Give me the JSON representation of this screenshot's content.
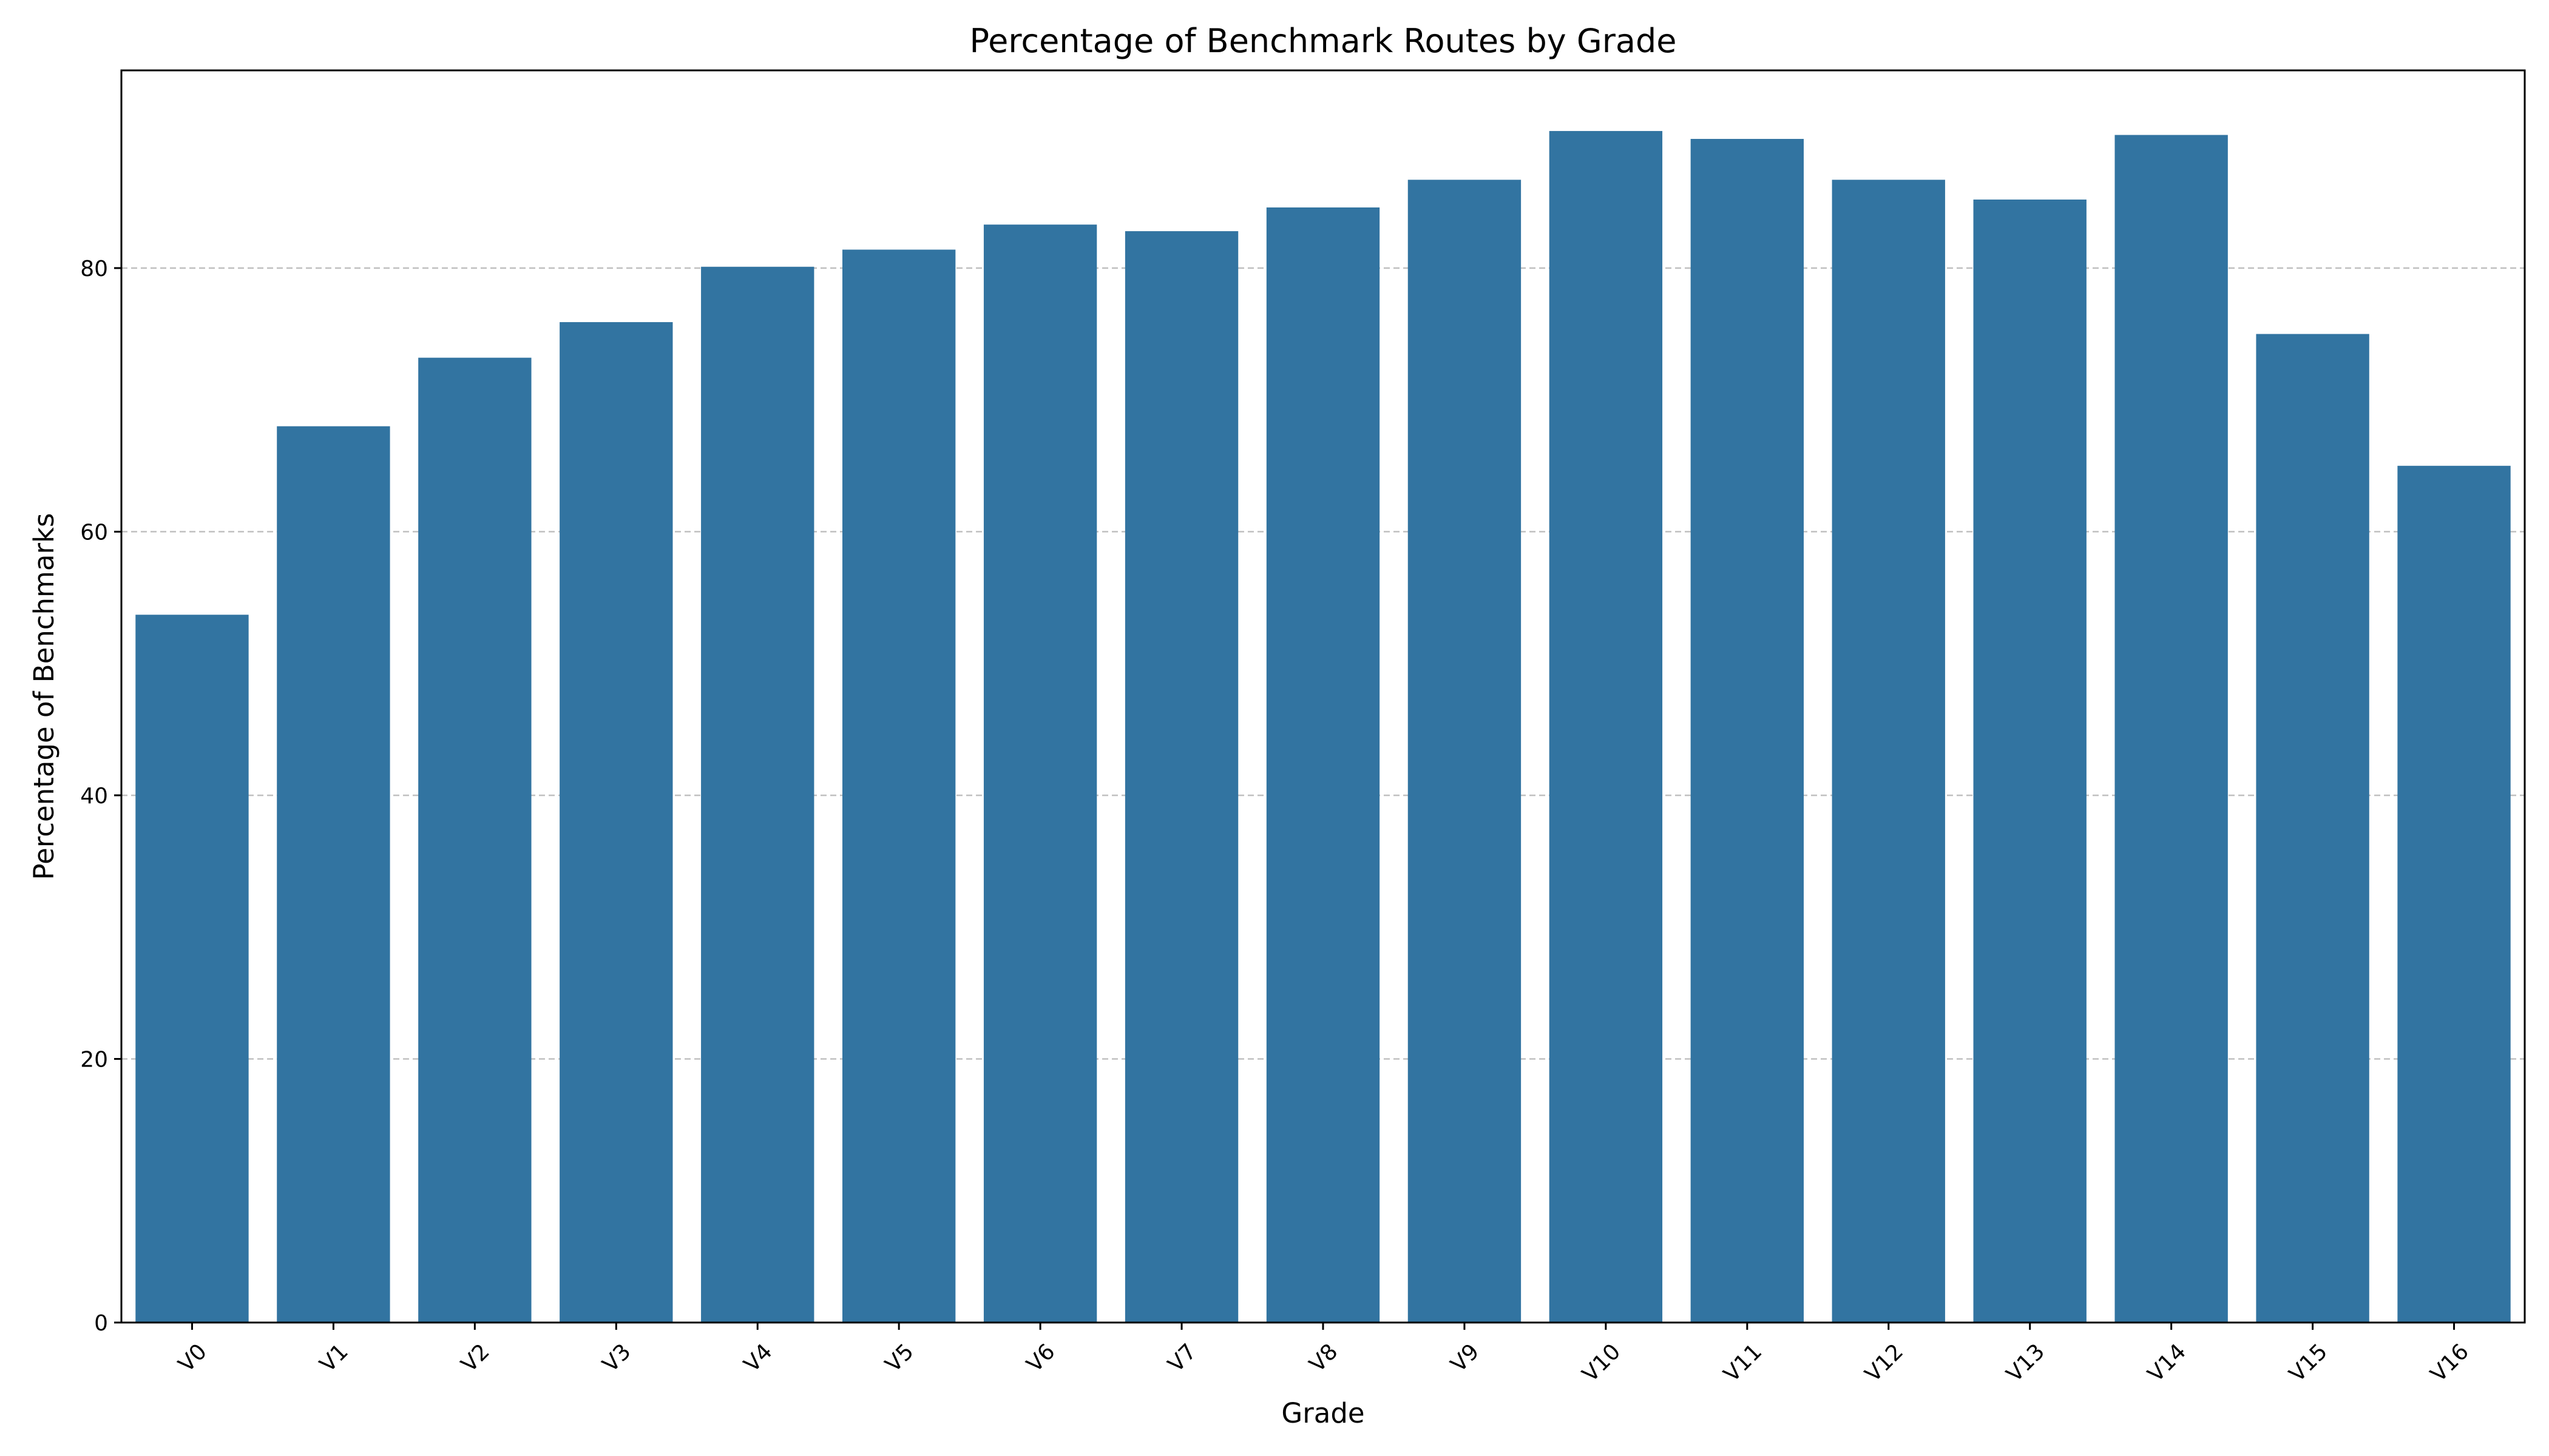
{
  "chart_data": {
    "type": "bar",
    "title": "Percentage of Benchmark Routes by Grade",
    "xlabel": "Grade",
    "ylabel": "Percentage of Benchmarks",
    "categories": [
      "V0",
      "V1",
      "V2",
      "V3",
      "V4",
      "V5",
      "V6",
      "V7",
      "V8",
      "V9",
      "V10",
      "V11",
      "V12",
      "V13",
      "V14",
      "V15",
      "V16"
    ],
    "values": [
      53.7,
      68.0,
      73.2,
      75.9,
      80.1,
      81.4,
      83.3,
      82.8,
      84.6,
      86.7,
      90.4,
      89.8,
      86.7,
      85.2,
      90.1,
      75.0,
      65.0
    ],
    "ylim": [
      0,
      95
    ],
    "yticks": [
      0,
      20,
      40,
      60,
      80
    ],
    "ytick_labels": [
      "0",
      "20",
      "40",
      "60",
      "80"
    ],
    "grid": "y-dashed",
    "legend": "none",
    "bar_color": "#3274a1",
    "grid_color": "#c0c0c0"
  }
}
